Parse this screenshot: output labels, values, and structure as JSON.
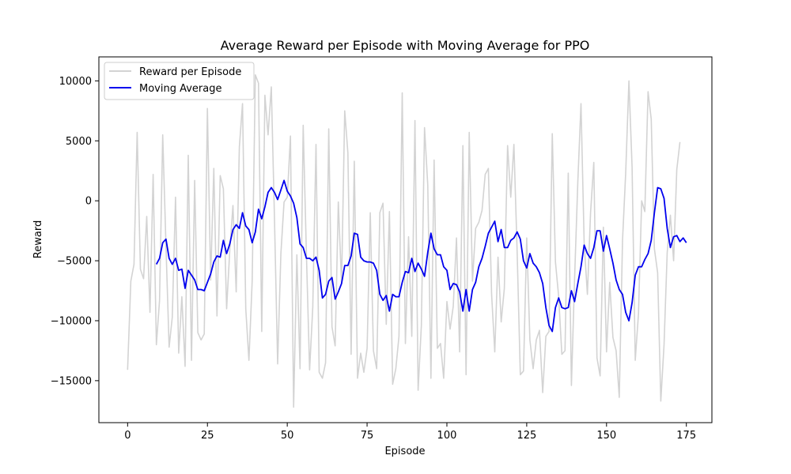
{
  "chart_data": {
    "type": "line",
    "title": "Average Reward per Episode with Moving Average for PPO",
    "xlabel": "Episode",
    "ylabel": "Reward",
    "xlim": [
      -9,
      183
    ],
    "ylim": [
      -18500,
      12000
    ],
    "xticks": [
      0,
      25,
      50,
      75,
      100,
      125,
      150,
      175
    ],
    "yticks": [
      -15000,
      -10000,
      -5000,
      0,
      5000,
      10000
    ],
    "grid": false,
    "legend": "top-left",
    "series": [
      {
        "name": "Reward per Episode",
        "color": "#d3d3d3",
        "x_start": 0,
        "values": [
          -14100,
          -6700,
          -5300,
          5700,
          -5700,
          -6500,
          -1300,
          -9300,
          2200,
          -12000,
          -8300,
          5500,
          -3700,
          -12200,
          -9700,
          300,
          -12700,
          -8000,
          -13800,
          3800,
          -13300,
          1700,
          -11000,
          -11600,
          -11100,
          7700,
          -6600,
          2700,
          -9600,
          2100,
          1000,
          -9000,
          -4100,
          -400,
          -7600,
          4500,
          8100,
          -9000,
          -13300,
          -6700,
          10500,
          9800,
          -10900,
          8800,
          5500,
          9500,
          -1500,
          -13600,
          -4400,
          -100,
          300,
          5400,
          -17200,
          -4500,
          -14000,
          6300,
          -4500,
          -14100,
          -8900,
          4700,
          -14300,
          -14800,
          -13500,
          6000,
          -10500,
          -12100,
          -100,
          -6900,
          7500,
          4000,
          -12800,
          3300,
          -14800,
          -12700,
          -14300,
          -12300,
          -1000,
          -12500,
          -14000,
          -1000,
          -200,
          -10300,
          -900,
          -15300,
          -14000,
          -11300,
          9000,
          -11900,
          -3000,
          -11300,
          6700,
          -15800,
          -10400,
          6100,
          1300,
          -14800,
          3400,
          -12300,
          -11900,
          -14800,
          -8400,
          -10700,
          -8800,
          -3100,
          -12600,
          4600,
          -14500,
          5700,
          -6700,
          -2300,
          -1800,
          -800,
          2200,
          2700,
          -7800,
          -12600,
          -4700,
          -10100,
          -7300,
          4600,
          300,
          4700,
          -4300,
          -14500,
          -14200,
          -3100,
          -11600,
          -14000,
          -11600,
          -10800,
          -16000,
          -11300,
          -10900,
          5600,
          -5100,
          -8000,
          -12800,
          -12500,
          2300,
          -15400,
          -6500,
          1600,
          8100,
          -3500,
          -7800,
          -1000,
          3200,
          -13100,
          -14600,
          -2200,
          -12600,
          -6800,
          -11400,
          -12500,
          -16400,
          -3300,
          2300,
          10000,
          2800,
          -13300,
          -9400,
          0,
          -900,
          9100,
          6800,
          -4000,
          -6000,
          -16700,
          -12000,
          -4300,
          -1200,
          -5000,
          2600,
          4900
        ]
      },
      {
        "name": "Moving Average",
        "color": "#0000ee",
        "x_start": 9,
        "values": [
          -5300,
          -4800,
          -3500,
          -3200,
          -4800,
          -5300,
          -4800,
          -5800,
          -5700,
          -7300,
          -5800,
          -6200,
          -6600,
          -7400,
          -7400,
          -7500,
          -6800,
          -6100,
          -5100,
          -4600,
          -4700,
          -3300,
          -4400,
          -3600,
          -2400,
          -2000,
          -2300,
          -1000,
          -2100,
          -2400,
          -3500,
          -2600,
          -700,
          -1500,
          -500,
          700,
          1100,
          700,
          100,
          900,
          1700,
          800,
          400,
          -200,
          -1400,
          -3600,
          -3900,
          -4800,
          -4800,
          -5000,
          -4700,
          -5800,
          -8100,
          -7800,
          -6700,
          -6400,
          -8200,
          -7600,
          -6900,
          -5400,
          -5400,
          -4600,
          -2700,
          -2800,
          -4700,
          -5000,
          -5100,
          -5100,
          -5200,
          -5800,
          -7800,
          -8300,
          -7900,
          -9200,
          -7800,
          -8000,
          -8000,
          -6800,
          -5900,
          -6000,
          -4800,
          -5900,
          -5200,
          -5700,
          -6300,
          -4300,
          -2700,
          -4000,
          -4500,
          -4500,
          -5500,
          -5800,
          -7400,
          -6900,
          -7000,
          -7600,
          -9200,
          -7400,
          -9200,
          -7400,
          -6800,
          -5500,
          -4800,
          -3800,
          -2700,
          -2200,
          -1700,
          -3400,
          -2400,
          -3900,
          -3900,
          -3300,
          -3100,
          -2600,
          -3200,
          -5000,
          -5600,
          -4400,
          -5200,
          -5500,
          -6000,
          -6900,
          -8900,
          -10400,
          -10900,
          -8900,
          -8100,
          -8900,
          -9000,
          -8900,
          -7500,
          -8400,
          -6900,
          -5500,
          -3700,
          -4400,
          -4800,
          -3900,
          -2500,
          -2500,
          -4200,
          -2900,
          -4000,
          -5200,
          -6600,
          -7400,
          -7800,
          -9300,
          -10000,
          -8500,
          -6200,
          -5500,
          -5500,
          -4900,
          -4400,
          -3300,
          -1000,
          1100,
          1000,
          200,
          -2300,
          -3900,
          -3000,
          -2900,
          -3400,
          -3100,
          -3500
        ]
      }
    ]
  }
}
